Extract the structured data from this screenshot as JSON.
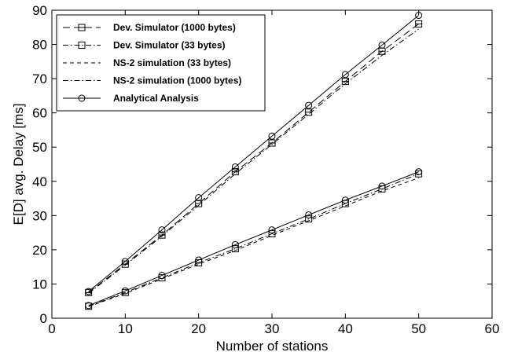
{
  "chart_data": {
    "type": "line",
    "title": "",
    "xlabel": "Number of stations",
    "ylabel": "E[D] avg. Delay [ms]",
    "xlim": [
      0,
      60
    ],
    "ylim": [
      0,
      90
    ],
    "xticks": [
      0,
      10,
      20,
      30,
      40,
      50,
      60
    ],
    "yticks": [
      0,
      10,
      20,
      30,
      40,
      50,
      60,
      70,
      80,
      90
    ],
    "grid": false,
    "legend_position": "top-left",
    "x": [
      5,
      10,
      15,
      20,
      25,
      30,
      35,
      40,
      45,
      50
    ],
    "series": [
      {
        "name": "Dev. Simulator (1000 bytes)",
        "group": "upper",
        "dash": "long-dash",
        "marker": "square-plus",
        "values": [
          7.5,
          15.8,
          24.3,
          33.5,
          42.8,
          51.2,
          60.2,
          69.2,
          78.0,
          86.0
        ]
      },
      {
        "name": "Dev. Simulator (33 bytes)",
        "group": "lower",
        "dash": "dash-dot",
        "marker": "square",
        "values": [
          3.5,
          7.5,
          11.8,
          16.2,
          20.3,
          24.7,
          29.0,
          33.5,
          37.8,
          42.2
        ]
      },
      {
        "name": "NS-2 simulation (33 bytes)",
        "group": "lower",
        "dash": "short-dash",
        "marker": "none",
        "values": [
          3.4,
          7.2,
          11.5,
          15.8,
          19.8,
          24.2,
          28.5,
          32.8,
          37.2,
          41.0
        ]
      },
      {
        "name": "NS-2 simulation (1000 bytes)",
        "group": "upper",
        "dash": "dash-dot",
        "marker": "none",
        "values": [
          7.3,
          15.5,
          24.0,
          33.0,
          42.2,
          50.8,
          59.6,
          68.5,
          76.8,
          84.5
        ]
      },
      {
        "name": "Analytical Analysis",
        "group": "both",
        "dash": "solid",
        "marker": "circle",
        "values": [
          7.8,
          16.6,
          25.8,
          35.2,
          44.2,
          53.2,
          62.2,
          71.2,
          79.8,
          88.5
        ],
        "values_lower": [
          3.7,
          8.0,
          12.5,
          17.0,
          21.5,
          25.8,
          30.2,
          34.5,
          38.6,
          42.8
        ]
      }
    ]
  }
}
